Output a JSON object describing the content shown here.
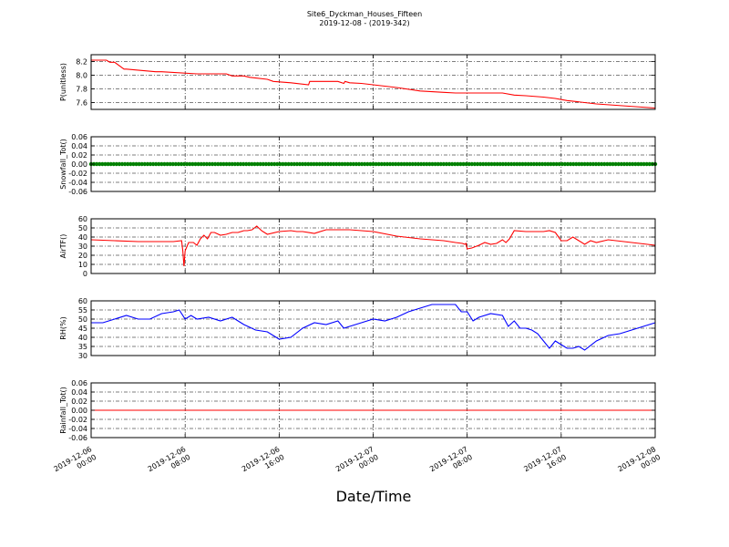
{
  "chart_data": {
    "type": "line",
    "title": "Site6_Dyckman_Houses_Fifteen",
    "subtitle": "2019-12-08 - (2019-342)",
    "xlabel": "Date/Time",
    "x_ticks": [
      "2019-12-06\n00:00",
      "2019-12-06\n08:00",
      "2019-12-06\n16:00",
      "2019-12-07\n00:00",
      "2019-12-07\n08:00",
      "2019-12-07\n16:00",
      "2019-12-08\n00:00"
    ],
    "x_range_hours": [
      0,
      48
    ],
    "grid": true,
    "panels": [
      {
        "ylabel": "P(unitless)",
        "ylim": [
          7.5,
          8.3
        ],
        "yticks": [
          "7.6",
          "7.8",
          "8.0",
          "8.2"
        ],
        "ytick_values": [
          7.6,
          7.8,
          8.0,
          8.2
        ],
        "series": [
          {
            "color": "#ff0000",
            "x": [
              0,
              1.3,
              1.6,
              2.0,
              2.8,
              3.0,
              5.5,
              6.0,
              9.0,
              9.2,
              11.5,
              12.0,
              13.0,
              13.5,
              15.0,
              15.5,
              17.0,
              18.5,
              18.6,
              21.0,
              21.5,
              21.6,
              22.0,
              23.0,
              24.0,
              25.0,
              26.0,
              28.0,
              30.0,
              31.0,
              32.0,
              35.0,
              36.0,
              37.0,
              38.5,
              39.5,
              40.5,
              42.0,
              43.0,
              48.0
            ],
            "y": [
              8.22,
              8.22,
              8.19,
              8.19,
              8.09,
              8.09,
              8.05,
              8.05,
              8.02,
              8.02,
              8.02,
              7.99,
              7.99,
              7.97,
              7.94,
              7.91,
              7.89,
              7.86,
              7.91,
              7.91,
              7.88,
              7.91,
              7.89,
              7.88,
              7.86,
              7.84,
              7.82,
              7.77,
              7.75,
              7.74,
              7.74,
              7.74,
              7.71,
              7.7,
              7.68,
              7.66,
              7.63,
              7.6,
              7.58,
              7.52
            ]
          }
        ]
      },
      {
        "ylabel": "Snowfall_Tot()",
        "ylim": [
          -0.06,
          0.06
        ],
        "yticks": [
          "-0.06",
          "-0.04",
          "-0.02",
          "0.00",
          "0.02",
          "0.04",
          "0.06"
        ],
        "ytick_values": [
          -0.06,
          -0.04,
          -0.02,
          0.0,
          0.02,
          0.04,
          0.06
        ],
        "marker": "dot",
        "series": [
          {
            "color": "#008000",
            "x": [
              0,
              48
            ],
            "y": [
              0,
              0
            ]
          }
        ]
      },
      {
        "ylabel": "AirTF()",
        "ylim": [
          0,
          60
        ],
        "yticks": [
          "0",
          "10",
          "20",
          "30",
          "40",
          "50",
          "60"
        ],
        "ytick_values": [
          0,
          10,
          20,
          30,
          40,
          50,
          60
        ],
        "series": [
          {
            "color": "#ff0000",
            "x": [
              0,
              2,
              4,
              5,
              6,
              7,
              7.7,
              7.8,
              7.9,
              8.0,
              8.3,
              8.7,
              9.0,
              9.3,
              9.6,
              9.9,
              10.2,
              10.5,
              11.0,
              11.5,
              12.0,
              12.5,
              13.0,
              13.3,
              13.7,
              14.1,
              14.5,
              15.0,
              16.0,
              17.0,
              17.5,
              18.0,
              19.0,
              20.0,
              22.0,
              24.0,
              26.0,
              28.0,
              30.0,
              31.0,
              31.6,
              31.8,
              31.9,
              32.0,
              32.4,
              33.0,
              33.5,
              34.0,
              34.5,
              35.0,
              35.3,
              35.6,
              36.0,
              37.0,
              38.0,
              38.5,
              39.0,
              39.5,
              40.0,
              40.5,
              41.0,
              41.5,
              42.0,
              42.5,
              43.0,
              44.0,
              46.0,
              48.0
            ],
            "y": [
              37,
              36,
              35,
              35,
              35,
              35,
              36,
              25,
              8,
              25,
              34,
              34,
              31,
              38,
              42,
              38,
              45,
              45,
              42,
              43,
              45,
              45,
              47,
              47,
              48,
              52,
              47,
              43,
              46,
              47,
              46,
              46,
              44,
              48,
              48,
              46,
              41,
              38,
              36,
              34,
              33,
              32,
              33,
              27,
              28,
              31,
              34,
              32,
              33,
              37,
              34,
              38,
              47,
              46,
              46,
              46,
              47,
              45,
              36,
              36,
              40,
              36,
              32,
              36,
              34,
              37,
              34,
              31
            ]
          }
        ]
      },
      {
        "ylabel": "RH(%)",
        "ylim": [
          30,
          60
        ],
        "yticks": [
          "30",
          "35",
          "40",
          "45",
          "50",
          "55",
          "60"
        ],
        "ytick_values": [
          30,
          35,
          40,
          45,
          50,
          55,
          60
        ],
        "series": [
          {
            "color": "#0000ff",
            "x": [
              0,
              1,
              2,
              3,
              4,
              5,
              6,
              7,
              7.5,
              8.0,
              8.5,
              9,
              10,
              11,
              12,
              13,
              14,
              15,
              16,
              17,
              18,
              19,
              20,
              21,
              21.5,
              22,
              23,
              24,
              25,
              26,
              27,
              28,
              29,
              30,
              31,
              31.5,
              32.0,
              32.5,
              33,
              34,
              35,
              35.5,
              36.0,
              36.5,
              37.0,
              37.5,
              38,
              39,
              39.5,
              40,
              40.5,
              41,
              41.5,
              42,
              43,
              44,
              45,
              46,
              47,
              48
            ],
            "y": [
              48,
              48,
              50,
              52,
              50,
              50,
              53,
              54,
              55,
              50,
              52,
              50,
              51,
              49,
              51,
              47,
              44,
              43,
              39,
              40,
              45,
              48,
              47,
              49,
              45,
              46,
              48,
              50,
              49,
              51,
              54,
              56,
              58,
              58,
              58,
              54,
              54,
              49,
              51,
              53,
              52,
              46,
              49,
              45,
              45,
              44,
              42,
              34,
              38,
              36,
              34,
              34,
              35,
              33,
              38,
              41,
              42,
              44,
              46,
              48
            ]
          }
        ]
      },
      {
        "ylabel": "Rainfall_Tot()",
        "ylim": [
          -0.06,
          0.06
        ],
        "yticks": [
          "-0.06",
          "-0.04",
          "-0.02",
          "0.00",
          "0.02",
          "0.04",
          "0.06"
        ],
        "ytick_values": [
          -0.06,
          -0.04,
          -0.02,
          0.0,
          0.02,
          0.04,
          0.06
        ],
        "series": [
          {
            "color": "#ff0000",
            "x": [
              0,
              48
            ],
            "y": [
              0,
              0
            ]
          }
        ]
      }
    ]
  }
}
